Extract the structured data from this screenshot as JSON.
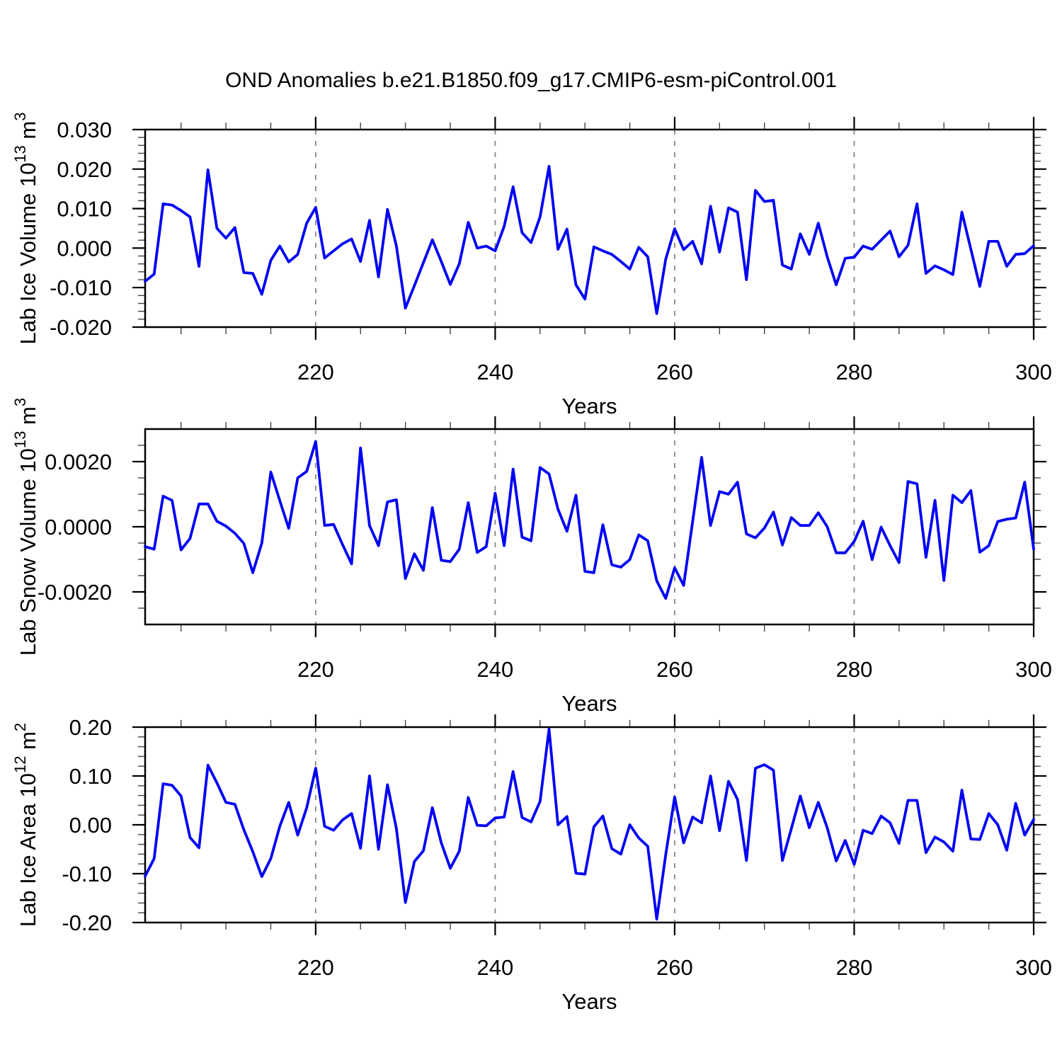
{
  "title": "OND Anomalies b.e21.B1850.f09_g17.CMIP6-esm-piControl.001",
  "colors": {
    "line": "#0000f5",
    "grid": "#888888",
    "frame": "#000000",
    "tick_major": "#000000",
    "tick_minor": "#444444",
    "background": "#ffffff"
  },
  "x_axis": {
    "label": "Years",
    "start": 201,
    "end": 300,
    "major_ticks": [
      220,
      240,
      260,
      280,
      300
    ],
    "major_labels": [
      "220",
      "240",
      "260",
      "280",
      "300"
    ],
    "minor_start": 205,
    "minor_step": 5,
    "gridlines": [
      220,
      240,
      260,
      280
    ]
  },
  "chart_data": [
    {
      "type": "line",
      "name": "lab-ice-volume",
      "ylabel_segments": [
        {
          "t": "Lab Ice Volume 10"
        },
        {
          "t": "13",
          "sup": true
        },
        {
          "t": " m"
        },
        {
          "t": "3",
          "sup": true
        }
      ],
      "xlabel": "Years",
      "y_min": -0.02,
      "y_max": 0.03,
      "y_minor_step": 0.002,
      "y_major_ticks": [
        {
          "v": 0.03,
          "label": "0.030"
        },
        {
          "v": 0.02,
          "label": "0.020"
        },
        {
          "v": 0.01,
          "label": "0.010"
        },
        {
          "v": 0.0,
          "label": "0.000"
        },
        {
          "v": -0.01,
          "label": "-0.010"
        },
        {
          "v": -0.02,
          "label": "-0.020"
        }
      ],
      "values": [
        -0.0084,
        -0.0066,
        0.0112,
        0.0109,
        0.0095,
        0.0079,
        -0.0046,
        0.0198,
        0.005,
        0.0025,
        0.0052,
        -0.0062,
        -0.0064,
        -0.0117,
        -0.0031,
        0.0005,
        -0.0035,
        -0.0016,
        0.0063,
        0.0103,
        -0.0025,
        -0.0007,
        0.0011,
        0.0023,
        -0.0034,
        0.007,
        -0.0073,
        0.0098,
        0.0005,
        -0.0152,
        -0.0095,
        -0.0037,
        0.0021,
        -0.0034,
        -0.0092,
        -0.004,
        0.0065,
        0.0,
        0.0005,
        -0.0007,
        0.0055,
        0.0155,
        0.0039,
        0.0014,
        0.0079,
        0.0207,
        -0.0003,
        0.0048,
        -0.0093,
        -0.0129,
        0.0003,
        -0.0007,
        -0.0016,
        -0.0034,
        -0.0053,
        0.0002,
        -0.0022,
        -0.0166,
        -0.0028,
        0.0049,
        -0.0004,
        0.0017,
        -0.004,
        0.0106,
        -0.001,
        0.0102,
        0.0091,
        -0.008,
        0.0146,
        0.0118,
        0.0121,
        -0.0043,
        -0.0053,
        0.0036,
        -0.0016,
        0.0063,
        -0.0022,
        -0.0093,
        -0.0026,
        -0.0023,
        0.0005,
        -0.0003,
        0.002,
        0.0043,
        -0.0022,
        0.0007,
        0.0112,
        -0.0064,
        -0.0045,
        -0.0055,
        -0.0067,
        0.0091,
        -0.0003,
        -0.0097,
        0.0017,
        0.0017,
        -0.0046,
        -0.0016,
        -0.0014,
        0.0006
      ]
    },
    {
      "type": "line",
      "name": "lab-snow-volume",
      "ylabel_segments": [
        {
          "t": "Lab Snow Volume 10"
        },
        {
          "t": "13",
          "sup": true
        },
        {
          "t": " m"
        },
        {
          "t": "3",
          "sup": true
        }
      ],
      "xlabel": "Years",
      "y_min": -0.003,
      "y_max": 0.003,
      "y_minor_step": 0.0005,
      "y_major_ticks": [
        {
          "v": 0.002,
          "label": "0.0020"
        },
        {
          "v": 0.0,
          "label": "0.0000"
        },
        {
          "v": -0.002,
          "label": "-0.0020"
        }
      ],
      "values": [
        -0.00061,
        -0.00069,
        0.00094,
        0.00081,
        -0.00071,
        -0.00036,
        0.0007,
        0.0007,
        0.00017,
        2e-05,
        -0.0002,
        -0.00051,
        -0.00141,
        -0.0005,
        0.00168,
        0.0008,
        -5e-05,
        0.0015,
        0.0017,
        0.00262,
        4e-05,
        7e-05,
        -0.00055,
        -0.00114,
        0.00242,
        4e-05,
        -0.00058,
        0.00076,
        0.00083,
        -0.00159,
        -0.00083,
        -0.00134,
        0.00059,
        -0.00103,
        -0.00107,
        -0.00069,
        0.00074,
        -0.00079,
        -0.00061,
        0.00103,
        -0.00058,
        0.00177,
        -0.00032,
        -0.00043,
        0.00182,
        0.00162,
        0.00054,
        -0.00014,
        0.00097,
        -0.00137,
        -0.00141,
        6e-05,
        -0.00117,
        -0.00124,
        -0.00101,
        -0.00025,
        -0.00043,
        -0.00166,
        -0.0022,
        -0.00126,
        -0.0018,
        0.00016,
        0.00213,
        4e-05,
        0.00108,
        0.001,
        0.00137,
        -0.00022,
        -0.00034,
        -4e-05,
        0.00045,
        -0.00056,
        0.00028,
        4e-05,
        4e-05,
        0.00043,
        0.0,
        -0.0008,
        -0.0008,
        -0.00045,
        0.00017,
        -0.00101,
        -1e-05,
        -0.00058,
        -0.0011,
        0.00139,
        0.00132,
        -0.00094,
        0.00081,
        -0.00165,
        0.00097,
        0.00074,
        0.00111,
        -0.00078,
        -0.00058,
        0.00016,
        0.00023,
        0.00027,
        0.00137,
        -0.00069
      ]
    },
    {
      "type": "line",
      "name": "lab-ice-area",
      "ylabel_segments": [
        {
          "t": "Lab Ice Area 10"
        },
        {
          "t": "12",
          "sup": true
        },
        {
          "t": " m"
        },
        {
          "t": "2",
          "sup": true
        }
      ],
      "xlabel": "Years",
      "y_min": -0.2,
      "y_max": 0.2,
      "y_minor_step": 0.02,
      "y_major_ticks": [
        {
          "v": 0.2,
          "label": "0.20"
        },
        {
          "v": 0.1,
          "label": "0.10"
        },
        {
          "v": 0.0,
          "label": "0.00"
        },
        {
          "v": -0.1,
          "label": "-0.10"
        },
        {
          "v": -0.2,
          "label": "-0.20"
        }
      ],
      "values": [
        -0.105,
        -0.069,
        0.084,
        0.081,
        0.059,
        -0.026,
        -0.047,
        0.122,
        0.086,
        0.046,
        0.042,
        -0.01,
        -0.055,
        -0.106,
        -0.069,
        -0.003,
        0.046,
        -0.021,
        0.035,
        0.116,
        -0.003,
        -0.011,
        0.01,
        0.023,
        -0.048,
        0.1,
        -0.05,
        0.082,
        -0.008,
        -0.159,
        -0.075,
        -0.053,
        0.035,
        -0.037,
        -0.089,
        -0.054,
        0.056,
        -0.001,
        -0.002,
        0.014,
        0.016,
        0.109,
        0.015,
        0.006,
        0.048,
        0.196,
        0.0,
        0.017,
        -0.099,
        -0.101,
        -0.004,
        0.018,
        -0.049,
        -0.06,
        0.0,
        -0.027,
        -0.044,
        -0.193,
        -0.061,
        0.057,
        -0.037,
        0.016,
        0.004,
        0.1,
        -0.012,
        0.089,
        0.052,
        -0.073,
        0.116,
        0.123,
        0.112,
        -0.073,
        -0.008,
        0.059,
        -0.006,
        0.046,
        -0.006,
        -0.074,
        -0.032,
        -0.081,
        -0.011,
        -0.018,
        0.018,
        0.004,
        -0.038,
        0.05,
        0.05,
        -0.057,
        -0.025,
        -0.035,
        -0.054,
        0.071,
        -0.029,
        -0.03,
        0.023,
        0.0,
        -0.052,
        0.044,
        -0.021,
        0.011
      ]
    }
  ]
}
